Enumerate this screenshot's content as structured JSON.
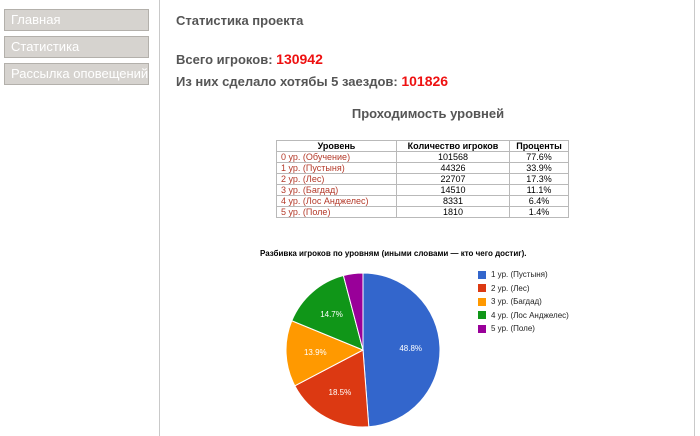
{
  "sidebar": {
    "items": [
      {
        "label": "Главная"
      },
      {
        "label": "Статистика"
      },
      {
        "label": "Рассылка оповещений"
      }
    ]
  },
  "main": {
    "title": "Статистика проекта",
    "total_players_label": "Всего игроков:",
    "total_players_value": "130942",
    "five_runs_label": "Из них сделало хотябы 5 заездов:",
    "five_runs_value": "101826",
    "section_title": "Проходимость уровней"
  },
  "table": {
    "headers": [
      "Уровень",
      "Количество игроков",
      "Проценты"
    ],
    "rows": [
      [
        "0 ур. (Обучение)",
        "101568",
        "77.6%"
      ],
      [
        "1 ур. (Пустыня)",
        "44326",
        "33.9%"
      ],
      [
        "2 ур. (Лес)",
        "22707",
        "17.3%"
      ],
      [
        "3 ур. (Багдад)",
        "14510",
        "11.1%"
      ],
      [
        "4 ур. (Лос Анджелес)",
        "8331",
        "6.4%"
      ],
      [
        "5 ур. (Поле)",
        "1810",
        "1.4%"
      ]
    ]
  },
  "chart_data": {
    "type": "pie",
    "title": "Разбивка игроков по уровням (иными словами — кто чего достиг).",
    "categories": [
      "1 ур. (Пустыня)",
      "2 ур. (Лес)",
      "3 ур. (Багдад)",
      "4 ур. (Лос Анджелес)",
      "5 ур. (Поле)"
    ],
    "values": [
      48.8,
      18.5,
      13.9,
      14.7,
      4.1
    ],
    "labels": [
      "48.8%",
      "18.5%",
      "13.9%",
      "14.7%",
      ""
    ],
    "colors": [
      "#3366cc",
      "#dc3912",
      "#ff9900",
      "#109618",
      "#990099"
    ],
    "legend_position": "right"
  }
}
